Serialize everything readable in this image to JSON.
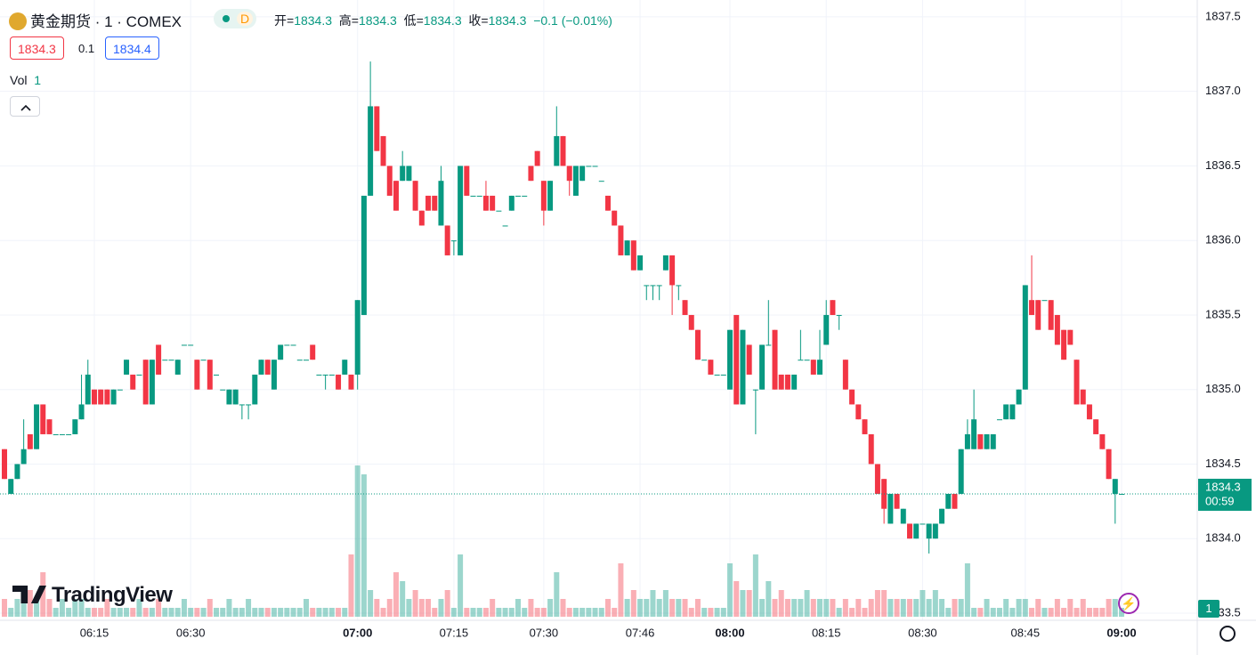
{
  "header": {
    "symbol": "黄金期货 · 1 · COMEX",
    "market_status": "D",
    "ohlc_labels": [
      "开=",
      "高=",
      "低=",
      "收="
    ],
    "change": {
      "value": -0.1,
      "label": "−0.1"
    },
    "change_pct": {
      "value": -0.01,
      "label": "(−0.01%)"
    },
    "bid": 1834.3,
    "spread": 0.1,
    "ask": 1834.4,
    "volume_label": "Vol",
    "countdown": "00:59",
    "logo": "TradingView"
  },
  "chart_data": {
    "type": "candlestick",
    "up_color": "#089981",
    "down_color": "#f23645",
    "grid": true,
    "ylim": [
      1833.452,
      1837.613
    ],
    "yticks": [
      1833.5,
      {
        "value": 1834.0,
        "label": "1834.0"
      },
      1834.5,
      {
        "value": 1835.0,
        "label": "1835.0"
      },
      1835.5,
      {
        "value": 1836.0,
        "label": "1836.0"
      },
      1836.5,
      {
        "value": 1837.0,
        "label": "1837.0"
      },
      1837.5
    ],
    "categories": [
      null,
      null,
      null,
      null,
      null,
      null,
      null,
      null,
      null,
      null,
      null,
      null,
      null,
      null,
      "06:15",
      null,
      null,
      null,
      null,
      null,
      null,
      null,
      null,
      null,
      null,
      null,
      null,
      null,
      null,
      "06:30",
      null,
      null,
      null,
      null,
      null,
      null,
      null,
      null,
      null,
      null,
      null,
      null,
      null,
      null,
      null,
      null,
      null,
      null,
      null,
      null,
      null,
      null,
      null,
      null,
      null,
      "07:00",
      null,
      null,
      null,
      null,
      null,
      null,
      null,
      null,
      null,
      null,
      null,
      null,
      null,
      null,
      "07:15",
      null,
      null,
      null,
      null,
      null,
      null,
      null,
      null,
      null,
      null,
      null,
      null,
      null,
      "07:30",
      null,
      null,
      null,
      null,
      null,
      null,
      null,
      null,
      null,
      null,
      null,
      null,
      null,
      null,
      "07:46",
      null,
      null,
      null,
      null,
      null,
      null,
      null,
      null,
      null,
      null,
      null,
      null,
      null,
      "08:00",
      null,
      null,
      null,
      null,
      null,
      null,
      null,
      null,
      null,
      null,
      null,
      null,
      null,
      null,
      "08:15",
      null,
      null,
      null,
      null,
      null,
      null,
      null,
      null,
      null,
      null,
      null,
      null,
      null,
      null,
      "08:30",
      null,
      null,
      null,
      null,
      null,
      null,
      null,
      null,
      null,
      null,
      null,
      null,
      null,
      null,
      null,
      "08:45",
      null,
      null,
      null,
      null,
      null,
      null,
      null,
      null,
      null,
      null,
      null,
      null,
      null,
      null,
      "09:00"
    ],
    "ohlc": [
      [
        1834.6,
        1834.6,
        1834.4,
        1834.4
      ],
      [
        1834.3,
        1834.4,
        1834.3,
        1834.4
      ],
      [
        1834.4,
        1834.5,
        1834.4,
        1834.5
      ],
      [
        1834.5,
        1834.8,
        1834.5,
        1834.6
      ],
      [
        1834.7,
        1834.7,
        1834.6,
        1834.6
      ],
      [
        1834.6,
        1834.9,
        1834.6,
        1834.9
      ],
      [
        1834.9,
        1834.9,
        1834.7,
        1834.7
      ],
      [
        1834.8,
        1834.8,
        1834.7,
        1834.7
      ],
      [
        1834.7,
        1834.7,
        1834.7,
        1834.7
      ],
      [
        1834.7,
        1834.7,
        1834.7,
        1834.7
      ],
      [
        1834.7,
        1834.7,
        1834.7,
        1834.7
      ],
      [
        1834.7,
        1834.8,
        1834.7,
        1834.8
      ],
      [
        1834.8,
        1835.1,
        1834.8,
        1834.9
      ],
      [
        1834.9,
        1835.2,
        1834.9,
        1835.1
      ],
      [
        1835.0,
        1835.0,
        1834.9,
        1834.9
      ],
      [
        1835.0,
        1835.0,
        1834.9,
        1834.9
      ],
      [
        1835.0,
        1835.0,
        1834.9,
        1834.9
      ],
      [
        1834.9,
        1835.0,
        1834.9,
        1835.0
      ],
      [
        1835.0,
        1835.0,
        1835.0,
        1835.0
      ],
      [
        1835.1,
        1835.2,
        1835.1,
        1835.2
      ],
      [
        1835.1,
        1835.1,
        1835.0,
        1835.0
      ],
      [
        1835.1,
        1835.1,
        1835.1,
        1835.1
      ],
      [
        1835.2,
        1835.2,
        1834.9,
        1834.9
      ],
      [
        1834.9,
        1835.2,
        1834.9,
        1835.2
      ],
      [
        1835.3,
        1835.3,
        1835.1,
        1835.1
      ],
      [
        1835.2,
        1835.2,
        1835.2,
        1835.2
      ],
      [
        1835.2,
        1835.2,
        1835.2,
        1835.2
      ],
      [
        1835.1,
        1835.2,
        1835.1,
        1835.2
      ],
      [
        1835.3,
        1835.3,
        1835.3,
        1835.3
      ],
      [
        1835.3,
        1835.3,
        1835.3,
        1835.3
      ],
      [
        1835.2,
        1835.2,
        1835.0,
        1835.0
      ],
      [
        1835.2,
        1835.2,
        1835.2,
        1835.2
      ],
      [
        1835.2,
        1835.2,
        1835.0,
        1835.0
      ],
      [
        1835.1,
        1835.1,
        1835.1,
        1835.1
      ],
      [
        1835.0,
        1835.0,
        1835.0,
        1835.0
      ],
      [
        1834.9,
        1835.0,
        1834.9,
        1835.0
      ],
      [
        1834.9,
        1835.0,
        1834.9,
        1835.0
      ],
      [
        1834.9,
        1834.9,
        1834.8,
        1834.9
      ],
      [
        1834.9,
        1834.9,
        1834.8,
        1834.9
      ],
      [
        1834.9,
        1835.1,
        1834.9,
        1835.1
      ],
      [
        1835.1,
        1835.2,
        1835.1,
        1835.2
      ],
      [
        1835.2,
        1835.2,
        1835.1,
        1835.1
      ],
      [
        1835.0,
        1835.2,
        1835.0,
        1835.2
      ],
      [
        1835.2,
        1835.3,
        1835.2,
        1835.3
      ],
      [
        1835.3,
        1835.3,
        1835.3,
        1835.3
      ],
      [
        1835.3,
        1835.3,
        1835.3,
        1835.3
      ],
      [
        1835.2,
        1835.2,
        1835.2,
        1835.2
      ],
      [
        1835.2,
        1835.2,
        1835.2,
        1835.2
      ],
      [
        1835.3,
        1835.3,
        1835.2,
        1835.2
      ],
      [
        1835.1,
        1835.1,
        1835.1,
        1835.1
      ],
      [
        1835.1,
        1835.1,
        1835.0,
        1835.1
      ],
      [
        1835.1,
        1835.1,
        1835.1,
        1835.1
      ],
      [
        1835.1,
        1835.1,
        1835.0,
        1835.0
      ],
      [
        1835.1,
        1835.2,
        1835.1,
        1835.2
      ],
      [
        1835.1,
        1835.1,
        1835.0,
        1835.0
      ],
      [
        1835.1,
        1835.6,
        1835.0,
        1835.6
      ],
      [
        1835.5,
        1836.3,
        1835.5,
        1836.3
      ],
      [
        1836.3,
        1837.2,
        1836.3,
        1836.9
      ],
      [
        1836.9,
        1836.9,
        1836.6,
        1836.6
      ],
      [
        1836.7,
        1836.7,
        1836.5,
        1836.5
      ],
      [
        1836.5,
        1836.5,
        1836.3,
        1836.3
      ],
      [
        1836.4,
        1836.4,
        1836.2,
        1836.2
      ],
      [
        1836.4,
        1836.6,
        1836.4,
        1836.5
      ],
      [
        1836.4,
        1836.5,
        1836.4,
        1836.5
      ],
      [
        1836.4,
        1836.4,
        1836.2,
        1836.2
      ],
      [
        1836.2,
        1836.2,
        1836.1,
        1836.1
      ],
      [
        1836.3,
        1836.3,
        1836.2,
        1836.2
      ],
      [
        1836.3,
        1836.3,
        1836.2,
        1836.2
      ],
      [
        1836.1,
        1836.5,
        1836.1,
        1836.4
      ],
      [
        1836.1,
        1836.1,
        1835.9,
        1835.9
      ],
      [
        1836.0,
        1836.0,
        1835.9,
        1836.0
      ],
      [
        1835.9,
        1836.5,
        1835.9,
        1836.5
      ],
      [
        1836.5,
        1836.5,
        1836.3,
        1836.3
      ],
      [
        1836.3,
        1836.3,
        1836.3,
        1836.3
      ],
      [
        1836.3,
        1836.3,
        1836.3,
        1836.3
      ],
      [
        1836.3,
        1836.4,
        1836.2,
        1836.2
      ],
      [
        1836.3,
        1836.3,
        1836.2,
        1836.2
      ],
      [
        1836.2,
        1836.2,
        1836.2,
        1836.2
      ],
      [
        1836.1,
        1836.1,
        1836.1,
        1836.1
      ],
      [
        1836.2,
        1836.3,
        1836.2,
        1836.3
      ],
      [
        1836.3,
        1836.3,
        1836.3,
        1836.3
      ],
      [
        1836.3,
        1836.3,
        1836.3,
        1836.3
      ],
      [
        1836.5,
        1836.5,
        1836.4,
        1836.4
      ],
      [
        1836.6,
        1836.6,
        1836.5,
        1836.5
      ],
      [
        1836.4,
        1836.4,
        1836.1,
        1836.2
      ],
      [
        1836.2,
        1836.4,
        1836.2,
        1836.4
      ],
      [
        1836.5,
        1836.9,
        1836.5,
        1836.7
      ],
      [
        1836.7,
        1836.7,
        1836.5,
        1836.5
      ],
      [
        1836.5,
        1836.5,
        1836.3,
        1836.4
      ],
      [
        1836.3,
        1836.5,
        1836.3,
        1836.5
      ],
      [
        1836.4,
        1836.5,
        1836.4,
        1836.5
      ],
      [
        1836.5,
        1836.5,
        1836.5,
        1836.5
      ],
      [
        1836.5,
        1836.5,
        1836.5,
        1836.5
      ],
      [
        1836.4,
        1836.4,
        1836.4,
        1836.4
      ],
      [
        1836.3,
        1836.3,
        1836.2,
        1836.2
      ],
      [
        1836.2,
        1836.2,
        1836.1,
        1836.1
      ],
      [
        1836.1,
        1836.1,
        1835.9,
        1835.9
      ],
      [
        1835.9,
        1836.0,
        1835.9,
        1836.0
      ],
      [
        1836.0,
        1836.0,
        1835.8,
        1835.8
      ],
      [
        1835.8,
        1835.9,
        1835.8,
        1835.9
      ],
      [
        1835.7,
        1835.7,
        1835.6,
        1835.7
      ],
      [
        1835.7,
        1835.7,
        1835.6,
        1835.7
      ],
      [
        1835.7,
        1835.7,
        1835.6,
        1835.7
      ],
      [
        1835.8,
        1835.9,
        1835.8,
        1835.9
      ],
      [
        1835.9,
        1835.9,
        1835.5,
        1835.7
      ],
      [
        1835.7,
        1835.7,
        1835.6,
        1835.7
      ],
      [
        1835.6,
        1835.6,
        1835.5,
        1835.5
      ],
      [
        1835.5,
        1835.5,
        1835.4,
        1835.4
      ],
      [
        1835.4,
        1835.4,
        1835.2,
        1835.2
      ],
      [
        1835.2,
        1835.2,
        1835.2,
        1835.2
      ],
      [
        1835.2,
        1835.2,
        1835.1,
        1835.1
      ],
      [
        1835.1,
        1835.1,
        1835.1,
        1835.1
      ],
      [
        1835.1,
        1835.1,
        1835.1,
        1835.1
      ],
      [
        1835.0,
        1835.4,
        1835.0,
        1835.4
      ],
      [
        1835.5,
        1835.5,
        1834.9,
        1834.9
      ],
      [
        1834.9,
        1835.4,
        1834.9,
        1835.4
      ],
      [
        1835.3,
        1835.3,
        1835.1,
        1835.1
      ],
      [
        1835.0,
        1835.0,
        1834.7,
        1835.0
      ],
      [
        1835.0,
        1835.3,
        1835.0,
        1835.3
      ],
      [
        1835.3,
        1835.6,
        1835.3,
        1835.3
      ],
      [
        1835.4,
        1835.4,
        1835.0,
        1835.0
      ],
      [
        1835.1,
        1835.1,
        1835.0,
        1835.0
      ],
      [
        1835.1,
        1835.1,
        1835.0,
        1835.0
      ],
      [
        1835.0,
        1835.1,
        1835.0,
        1835.1
      ],
      [
        1835.2,
        1835.4,
        1835.2,
        1835.2
      ],
      [
        1835.2,
        1835.2,
        1835.2,
        1835.2
      ],
      [
        1835.2,
        1835.2,
        1835.1,
        1835.1
      ],
      [
        1835.1,
        1835.4,
        1835.1,
        1835.2
      ],
      [
        1835.3,
        1835.6,
        1835.3,
        1835.5
      ],
      [
        1835.6,
        1835.6,
        1835.5,
        1835.5
      ],
      [
        1835.5,
        1835.5,
        1835.4,
        1835.5
      ],
      [
        1835.2,
        1835.2,
        1835.0,
        1835.0
      ],
      [
        1835.0,
        1835.0,
        1834.9,
        1834.9
      ],
      [
        1834.9,
        1834.9,
        1834.8,
        1834.8
      ],
      [
        1834.8,
        1834.8,
        1834.7,
        1834.7
      ],
      [
        1834.7,
        1834.7,
        1834.5,
        1834.5
      ],
      [
        1834.5,
        1834.5,
        1834.3,
        1834.3
      ],
      [
        1834.4,
        1834.4,
        1834.1,
        1834.2
      ],
      [
        1834.1,
        1834.3,
        1834.1,
        1834.3
      ],
      [
        1834.3,
        1834.3,
        1834.2,
        1834.2
      ],
      [
        1834.1,
        1834.2,
        1834.1,
        1834.2
      ],
      [
        1834.1,
        1834.1,
        1834.0,
        1834.0
      ],
      [
        1834.0,
        1834.1,
        1834.0,
        1834.1
      ],
      [
        1834.1,
        1834.1,
        1834.1,
        1834.1
      ],
      [
        1834.0,
        1834.1,
        1833.9,
        1834.1
      ],
      [
        1834.0,
        1834.1,
        1834.0,
        1834.1
      ],
      [
        1834.1,
        1834.2,
        1834.1,
        1834.2
      ],
      [
        1834.2,
        1834.3,
        1834.2,
        1834.3
      ],
      [
        1834.3,
        1834.3,
        1834.2,
        1834.2
      ],
      [
        1834.3,
        1834.6,
        1834.3,
        1834.6
      ],
      [
        1834.6,
        1834.8,
        1834.6,
        1834.7
      ],
      [
        1834.6,
        1835.0,
        1834.6,
        1834.8
      ],
      [
        1834.7,
        1834.7,
        1834.6,
        1834.6
      ],
      [
        1834.6,
        1834.7,
        1834.6,
        1834.7
      ],
      [
        1834.6,
        1834.7,
        1834.6,
        1834.7
      ],
      [
        1834.8,
        1834.8,
        1834.8,
        1834.8
      ],
      [
        1834.8,
        1834.9,
        1834.8,
        1834.9
      ],
      [
        1834.8,
        1834.9,
        1834.8,
        1834.9
      ],
      [
        1834.9,
        1835.0,
        1834.9,
        1835.0
      ],
      [
        1835.0,
        1835.7,
        1835.0,
        1835.7
      ],
      [
        1835.6,
        1835.9,
        1835.5,
        1835.5
      ],
      [
        1835.6,
        1835.6,
        1835.4,
        1835.4
      ],
      [
        1835.6,
        1835.6,
        1835.6,
        1835.6
      ],
      [
        1835.6,
        1835.6,
        1835.4,
        1835.4
      ],
      [
        1835.5,
        1835.5,
        1835.3,
        1835.3
      ],
      [
        1835.4,
        1835.4,
        1835.2,
        1835.2
      ],
      [
        1835.4,
        1835.4,
        1835.3,
        1835.3
      ],
      [
        1835.2,
        1835.2,
        1834.9,
        1834.9
      ],
      [
        1835.0,
        1835.0,
        1834.9,
        1834.9
      ],
      [
        1834.9,
        1834.9,
        1834.8,
        1834.8
      ],
      [
        1834.8,
        1834.8,
        1834.7,
        1834.7
      ],
      [
        1834.7,
        1834.7,
        1834.6,
        1834.6
      ],
      [
        1834.6,
        1834.6,
        1834.4,
        1834.4
      ],
      [
        1834.3,
        1834.4,
        1834.1,
        1834.4
      ],
      [
        1834.3,
        1834.3,
        1834.3,
        1834.3
      ]
    ],
    "volume": [
      2,
      1,
      2,
      2,
      3,
      2,
      5,
      2,
      1,
      2,
      1,
      2,
      2,
      1,
      1,
      1,
      2,
      1,
      1,
      1,
      1,
      2,
      1,
      1,
      2,
      1,
      1,
      1,
      2,
      1,
      1,
      1,
      2,
      1,
      1,
      2,
      1,
      1,
      2,
      1,
      1,
      1,
      1,
      1,
      1,
      1,
      1,
      2,
      1,
      1,
      1,
      1,
      1,
      1,
      7,
      17,
      16,
      3,
      2,
      1,
      2,
      5,
      4,
      2,
      3,
      2,
      2,
      1,
      2,
      3,
      1,
      7,
      1,
      1,
      1,
      1,
      2,
      1,
      1,
      1,
      2,
      1,
      2,
      1,
      1,
      2,
      5,
      2,
      1,
      1,
      1,
      1,
      1,
      1,
      2,
      1,
      6,
      2,
      3,
      2,
      2,
      3,
      2,
      3,
      2,
      2,
      2,
      1,
      2,
      1,
      1,
      1,
      1,
      6,
      4,
      3,
      3,
      7,
      2,
      4,
      2,
      3,
      2,
      2,
      2,
      3,
      2,
      2,
      2,
      2,
      1,
      2,
      1,
      2,
      1,
      2,
      3,
      3,
      2,
      2,
      2,
      2,
      2,
      3,
      2,
      3,
      2,
      1,
      2,
      2,
      6,
      1,
      1,
      2,
      1,
      1,
      2,
      1,
      2,
      2,
      1,
      2,
      1,
      1,
      2,
      1,
      2,
      1,
      2,
      1,
      1,
      1,
      2,
      2,
      1
    ]
  }
}
